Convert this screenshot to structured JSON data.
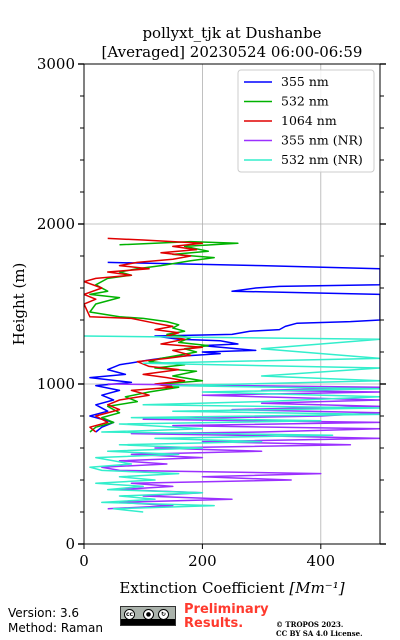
{
  "chart_data": {
    "type": "line",
    "title_line1": "pollyxt_tjk at Dushanbe",
    "title_line2": "[Averaged] 20230524 06:00-06:59",
    "xlabel": "Extinction Coefficient",
    "xlabel_unit": "[Mm⁻¹]",
    "ylabel": "Height (m)",
    "xlim": [
      0,
      500
    ],
    "ylim": [
      0,
      3000
    ],
    "xticks": [
      0,
      200,
      400
    ],
    "yticks": [
      0,
      1000,
      2000,
      3000
    ],
    "grid": true,
    "legend_position": "top-right",
    "series": [
      {
        "name": "355 nm",
        "color": "#0000ff",
        "points": [
          [
            40,
            1760
          ],
          [
            300,
            1740
          ],
          [
            500,
            1720
          ],
          [
            500,
            1620
          ],
          [
            330,
            1610
          ],
          [
            290,
            1600
          ],
          [
            250,
            1580
          ],
          [
            500,
            1560
          ],
          [
            500,
            1400
          ],
          [
            450,
            1390
          ],
          [
            360,
            1380
          ],
          [
            340,
            1360
          ],
          [
            330,
            1340
          ],
          [
            280,
            1330
          ],
          [
            250,
            1310
          ],
          [
            120,
            1300
          ],
          [
            160,
            1280
          ],
          [
            230,
            1270
          ],
          [
            260,
            1250
          ],
          [
            200,
            1240
          ],
          [
            290,
            1210
          ],
          [
            200,
            1200
          ],
          [
            230,
            1190
          ],
          [
            150,
            1170
          ],
          [
            110,
            1150
          ],
          [
            60,
            1120
          ],
          [
            40,
            1090
          ],
          [
            70,
            1060
          ],
          [
            10,
            1040
          ],
          [
            80,
            1010
          ],
          [
            20,
            990
          ],
          [
            60,
            960
          ],
          [
            30,
            930
          ],
          [
            50,
            900
          ],
          [
            20,
            870
          ],
          [
            40,
            830
          ],
          [
            10,
            800
          ],
          [
            50,
            760
          ],
          [
            30,
            730
          ],
          [
            20,
            700
          ]
        ]
      },
      {
        "name": "532 nm",
        "color": "#00b200",
        "points": [
          [
            60,
            1870
          ],
          [
            180,
            1890
          ],
          [
            260,
            1880
          ],
          [
            170,
            1860
          ],
          [
            210,
            1830
          ],
          [
            150,
            1810
          ],
          [
            220,
            1790
          ],
          [
            180,
            1770
          ],
          [
            130,
            1740
          ],
          [
            90,
            1720
          ],
          [
            60,
            1700
          ],
          [
            80,
            1680
          ],
          [
            40,
            1660
          ],
          [
            20,
            1620
          ],
          [
            40,
            1580
          ],
          [
            10,
            1560
          ],
          [
            60,
            1540
          ],
          [
            20,
            1500
          ],
          [
            10,
            1450
          ],
          [
            60,
            1420
          ],
          [
            100,
            1410
          ],
          [
            140,
            1390
          ],
          [
            160,
            1370
          ],
          [
            150,
            1350
          ],
          [
            170,
            1330
          ],
          [
            140,
            1310
          ],
          [
            180,
            1290
          ],
          [
            160,
            1260
          ],
          [
            210,
            1240
          ],
          [
            170,
            1220
          ],
          [
            190,
            1200
          ],
          [
            160,
            1180
          ],
          [
            130,
            1160
          ],
          [
            110,
            1140
          ],
          [
            170,
            1120
          ],
          [
            120,
            1100
          ],
          [
            190,
            1080
          ],
          [
            150,
            1050
          ],
          [
            200,
            1020
          ],
          [
            130,
            1000
          ],
          [
            160,
            980
          ],
          [
            110,
            950
          ],
          [
            70,
            920
          ],
          [
            90,
            890
          ],
          [
            40,
            860
          ],
          [
            60,
            820
          ],
          [
            30,
            790
          ],
          [
            50,
            760
          ],
          [
            20,
            730
          ],
          [
            10,
            700
          ]
        ]
      },
      {
        "name": "1064 nm",
        "color": "#e00000",
        "points": [
          [
            40,
            1910
          ],
          [
            100,
            1900
          ],
          [
            200,
            1880
          ],
          [
            150,
            1860
          ],
          [
            190,
            1840
          ],
          [
            130,
            1820
          ],
          [
            180,
            1800
          ],
          [
            150,
            1780
          ],
          [
            90,
            1760
          ],
          [
            60,
            1740
          ],
          [
            110,
            1720
          ],
          [
            40,
            1700
          ],
          [
            80,
            1680
          ],
          [
            20,
            1660
          ],
          [
            0,
            1640
          ],
          [
            30,
            1600
          ],
          [
            0,
            1560
          ],
          [
            20,
            1530
          ],
          [
            0,
            1500
          ],
          [
            10,
            1420
          ],
          [
            80,
            1410
          ],
          [
            120,
            1380
          ],
          [
            150,
            1360
          ],
          [
            120,
            1340
          ],
          [
            160,
            1320
          ],
          [
            140,
            1300
          ],
          [
            170,
            1280
          ],
          [
            130,
            1250
          ],
          [
            200,
            1230
          ],
          [
            150,
            1210
          ],
          [
            180,
            1180
          ],
          [
            140,
            1160
          ],
          [
            90,
            1140
          ],
          [
            110,
            1110
          ],
          [
            160,
            1090
          ],
          [
            100,
            1060
          ],
          [
            140,
            1040
          ],
          [
            170,
            1020
          ],
          [
            120,
            1000
          ],
          [
            150,
            980
          ],
          [
            80,
            960
          ],
          [
            110,
            930
          ],
          [
            60,
            900
          ],
          [
            40,
            870
          ],
          [
            60,
            840
          ],
          [
            20,
            800
          ],
          [
            40,
            760
          ],
          [
            10,
            730
          ],
          [
            20,
            700
          ]
        ]
      },
      {
        "name": "355 nm (NR)",
        "color": "#9b30ff",
        "points": [
          [
            40,
            1000
          ],
          [
            500,
            980
          ],
          [
            300,
            960
          ],
          [
            500,
            950
          ],
          [
            200,
            930
          ],
          [
            500,
            900
          ],
          [
            300,
            880
          ],
          [
            500,
            860
          ],
          [
            250,
            840
          ],
          [
            500,
            820
          ],
          [
            400,
            800
          ],
          [
            100,
            780
          ],
          [
            500,
            760
          ],
          [
            150,
            740
          ],
          [
            500,
            720
          ],
          [
            300,
            700
          ],
          [
            80,
            690
          ],
          [
            260,
            680
          ],
          [
            500,
            660
          ],
          [
            200,
            640
          ],
          [
            450,
            620
          ],
          [
            120,
            600
          ],
          [
            300,
            580
          ],
          [
            80,
            560
          ],
          [
            200,
            540
          ],
          [
            60,
            520
          ],
          [
            140,
            500
          ],
          [
            30,
            480
          ],
          [
            60,
            460
          ],
          [
            400,
            440
          ],
          [
            200,
            420
          ],
          [
            350,
            400
          ],
          [
            80,
            380
          ],
          [
            150,
            360
          ],
          [
            60,
            340
          ],
          [
            200,
            320
          ],
          [
            100,
            300
          ],
          [
            250,
            280
          ],
          [
            60,
            260
          ],
          [
            150,
            240
          ],
          [
            40,
            220
          ]
        ]
      },
      {
        "name": "532 nm (NR)",
        "color": "#33eecc",
        "points": [
          [
            0,
            1300
          ],
          [
            500,
            1280
          ],
          [
            300,
            1220
          ],
          [
            500,
            1160
          ],
          [
            100,
            1130
          ],
          [
            500,
            1100
          ],
          [
            300,
            1050
          ],
          [
            500,
            1020
          ],
          [
            150,
            990
          ],
          [
            500,
            970
          ],
          [
            200,
            950
          ],
          [
            500,
            920
          ],
          [
            300,
            890
          ],
          [
            100,
            870
          ],
          [
            500,
            850
          ],
          [
            150,
            830
          ],
          [
            500,
            810
          ],
          [
            80,
            790
          ],
          [
            400,
            770
          ],
          [
            60,
            750
          ],
          [
            200,
            720
          ],
          [
            30,
            700
          ],
          [
            420,
            680
          ],
          [
            120,
            660
          ],
          [
            300,
            640
          ],
          [
            60,
            620
          ],
          [
            200,
            600
          ],
          [
            40,
            580
          ],
          [
            160,
            560
          ],
          [
            20,
            540
          ],
          [
            80,
            500
          ],
          [
            10,
            480
          ],
          [
            30,
            460
          ],
          [
            160,
            440
          ],
          [
            60,
            420
          ],
          [
            120,
            400
          ],
          [
            20,
            380
          ],
          [
            100,
            360
          ],
          [
            40,
            340
          ],
          [
            200,
            320
          ],
          [
            60,
            300
          ],
          [
            120,
            280
          ],
          [
            30,
            260
          ],
          [
            220,
            240
          ],
          [
            50,
            220
          ],
          [
            100,
            200
          ]
        ]
      }
    ]
  },
  "footer": {
    "version": "Version: 3.6",
    "method": "Method: Raman",
    "preliminary_line1": "Preliminary",
    "preliminary_line2": "Results.",
    "copyright_line1": "© TROPOS 2023.",
    "copyright_line2": "CC BY SA 4.0 License."
  }
}
